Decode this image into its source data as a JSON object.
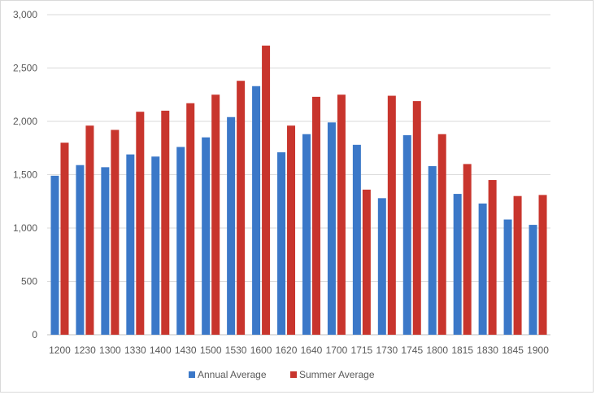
{
  "chart_data": {
    "type": "bar",
    "title": "",
    "xlabel": "",
    "ylabel": "",
    "categories": [
      "1200",
      "1230",
      "1300",
      "1330",
      "1400",
      "1430",
      "1500",
      "1530",
      "1600",
      "1620",
      "1640",
      "1700",
      "1715",
      "1730",
      "1745",
      "1800",
      "1815",
      "1830",
      "1845",
      "1900"
    ],
    "series": [
      {
        "name": "Annual Average",
        "color": "#3b78c8",
        "values": [
          1490,
          1590,
          1570,
          1690,
          1670,
          1760,
          1850,
          2040,
          2330,
          1710,
          1880,
          1990,
          1780,
          1280,
          1870,
          1580,
          1320,
          1230,
          1080,
          1030
        ]
      },
      {
        "name": "Summer Average",
        "color": "#c8352d",
        "values": [
          1800,
          1960,
          1920,
          2090,
          2100,
          2170,
          2250,
          2380,
          2710,
          1960,
          2230,
          2250,
          1360,
          2240,
          2190,
          1880,
          1600,
          1450,
          1300,
          1310
        ]
      }
    ],
    "ylim": [
      0,
      3000
    ],
    "yticks": [
      0,
      500,
      1000,
      1500,
      2000,
      2500,
      3000
    ],
    "ytick_labels": [
      "0",
      "500",
      "1,000",
      "1,500",
      "2,000",
      "2,500",
      "3,000"
    ],
    "grid": true,
    "legend_position": "bottom"
  }
}
